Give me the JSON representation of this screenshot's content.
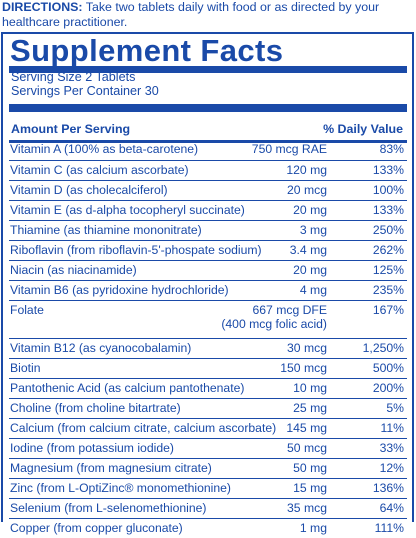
{
  "directions": {
    "label": "DIRECTIONS:",
    "text": " Take two tablets daily with food or as directed by your healthcare practitioner."
  },
  "title": "Supplement Facts",
  "serving_size": "Serving Size 2 Tablets",
  "servings_per_container": "Servings Per Container 30",
  "header": {
    "amount": "Amount Per Serving",
    "daily_value": "% Daily Value"
  },
  "colors": {
    "brand_blue": "#1a4aa8",
    "background": "#ffffff"
  },
  "rows": [
    {
      "name": "Vitamin A (100% as beta-carotene)",
      "amount": "750 mcg RAE",
      "dv": "83%"
    },
    {
      "name": "Vitamin C (as calcium ascorbate)",
      "amount": "120 mg",
      "dv": "133%"
    },
    {
      "name": "Vitamin D (as cholecalciferol)",
      "amount": "20 mcg",
      "dv": "100%"
    },
    {
      "name": "Vitamin E (as d-alpha tocopheryl succinate)",
      "amount": "20 mg",
      "dv": "133%"
    },
    {
      "name": "Thiamine (as thiamine mononitrate)",
      "amount": "3 mg",
      "dv": "250%"
    },
    {
      "name": "Riboflavin (from riboflavin-5'-phospate sodium)",
      "amount": "3.4 mg",
      "dv": "262%"
    },
    {
      "name": "Niacin (as niacinamide)",
      "amount": "20 mg",
      "dv": "125%"
    },
    {
      "name": "Vitamin B6 (as pyridoxine hydrochloride)",
      "amount": "4 mg",
      "dv": "235%"
    },
    {
      "name": "Folate",
      "amount": "667 mcg DFE",
      "amount2": "(400 mcg folic acid)",
      "dv": "167%"
    },
    {
      "name": "Vitamin B12 (as cyanocobalamin)",
      "amount": "30 mcg",
      "dv": "1,250%"
    },
    {
      "name": "Biotin",
      "amount": "150 mcg",
      "dv": "500%"
    },
    {
      "name": "Pantothenic Acid (as calcium pantothenate)",
      "amount": "10 mg",
      "dv": "200%"
    },
    {
      "name": "Choline (from choline bitartrate)",
      "amount": "25 mg",
      "dv": "5%"
    },
    {
      "name": "Calcium (from calcium citrate, calcium ascorbate)",
      "amount": "145 mg",
      "dv": "11%"
    },
    {
      "name": "Iodine (from potassium iodide)",
      "amount": "50 mcg",
      "dv": "33%"
    },
    {
      "name": "Magnesium (from magnesium citrate)",
      "amount": "50 mg",
      "dv": "12%"
    },
    {
      "name": "Zinc (from L-OptiZinc® monomethionine)",
      "amount": "15 mg",
      "dv": "136%"
    },
    {
      "name": "Selenium (from L-selenomethionine)",
      "amount": "35 mcg",
      "dv": "64%"
    },
    {
      "name": "Copper (from copper gluconate)",
      "amount": "1 mg",
      "dv": "111%"
    }
  ]
}
